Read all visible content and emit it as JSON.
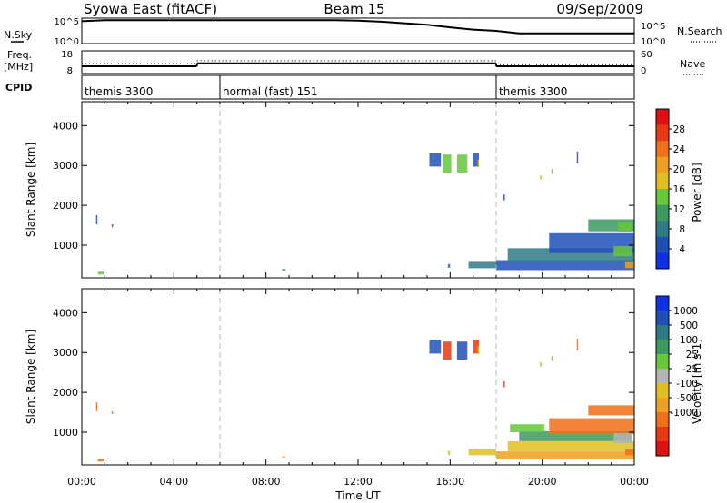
{
  "header": {
    "title": "Syowa East (fitACF)",
    "beam": "Beam 15",
    "date": "09/Sep/2009"
  },
  "chart_data": [
    {
      "type": "line",
      "panel": "nsky",
      "left_label": "N.Sky",
      "right_label": "N.Search",
      "left_ticks": [
        "10^5",
        "10^0"
      ],
      "right_ticks": [
        "10^5",
        "10^0"
      ],
      "x_hours": [
        0,
        1,
        2,
        3,
        4,
        5,
        6,
        7,
        8,
        9,
        10,
        11,
        12,
        13,
        14,
        15,
        16,
        17,
        18,
        19,
        20,
        21,
        22,
        23,
        24
      ],
      "nsky_fraction": [
        0.88,
        0.92,
        0.92,
        0.92,
        0.92,
        0.92,
        0.92,
        0.92,
        0.92,
        0.92,
        0.92,
        0.92,
        0.9,
        0.86,
        0.8,
        0.74,
        0.64,
        0.55,
        0.5,
        0.4,
        0.4,
        0.4,
        0.4,
        0.4,
        0.4
      ]
    },
    {
      "type": "line",
      "panel": "frequency",
      "left_label": "Freq.",
      "left_unit": "[MHz]",
      "right_label": "Nave",
      "left_ticks": [
        "18",
        "8"
      ],
      "right_ticks": [
        "60",
        "0"
      ],
      "ylim": [
        8,
        18
      ],
      "freq_segments": [
        {
          "x_start": 0,
          "x_end": 5,
          "freq": 11.2
        },
        {
          "x_start": 5,
          "x_end": 18,
          "freq": 12.5
        },
        {
          "x_start": 18,
          "x_end": 24,
          "freq": 11.2
        }
      ],
      "nave_segments": [
        {
          "x_start": 0,
          "x_end": 5,
          "nave": 26
        },
        {
          "x_start": 5,
          "x_end": 18,
          "nave": 34
        },
        {
          "x_start": 18,
          "x_end": 24,
          "nave": 24
        }
      ]
    },
    {
      "type": "table",
      "panel": "cpid",
      "label": "CPID",
      "segments": [
        {
          "x_start": 0,
          "x_end": 6,
          "name": "themis 3300"
        },
        {
          "x_start": 6,
          "x_end": 18,
          "name": "normal (fast) 151"
        },
        {
          "x_start": 18,
          "x_end": 24,
          "name": "themis 3300"
        }
      ]
    },
    {
      "type": "heatmap",
      "panel": "power",
      "ylabel": "Slant Range [km]",
      "yticks": [
        1000,
        2000,
        3000,
        4000
      ],
      "ylim": [
        180,
        4600
      ],
      "xlim": [
        0,
        24
      ],
      "colorbar_label": "Power [dB]",
      "colorbar_ticks": [
        "4",
        "8",
        "12",
        "16",
        "20",
        "24",
        "28"
      ],
      "colors": [
        "#1030e8",
        "#1e50b8",
        "#2e7a86",
        "#3c9a60",
        "#66c83a",
        "#e0c020",
        "#f0a020",
        "#f07018",
        "#e83a10",
        "#e01010"
      ],
      "patches": [
        {
          "x": 0.62,
          "r": 1640,
          "w": 0.06,
          "h": 230,
          "c": 1
        },
        {
          "x": 0.7,
          "r": 300,
          "w": 0.25,
          "h": 70,
          "c": 4
        },
        {
          "x": 1.3,
          "r": 1490,
          "w": 0.05,
          "h": 70,
          "c": 1
        },
        {
          "x": 8.7,
          "r": 380,
          "w": 0.15,
          "h": 40,
          "c": 2
        },
        {
          "x": 15.1,
          "r": 3150,
          "w": 0.5,
          "h": 350,
          "c": 1
        },
        {
          "x": 15.7,
          "r": 3050,
          "w": 0.35,
          "h": 450,
          "c": 4
        },
        {
          "x": 16.3,
          "r": 3050,
          "w": 0.45,
          "h": 450,
          "c": 4
        },
        {
          "x": 17.0,
          "r": 3150,
          "w": 0.25,
          "h": 350,
          "c": 1
        },
        {
          "x": 15.9,
          "r": 480,
          "w": 0.1,
          "h": 100,
          "c": 2
        },
        {
          "x": 16.8,
          "r": 500,
          "w": 1.2,
          "h": 160,
          "c": 2
        },
        {
          "x": 18.0,
          "r": 500,
          "w": 6.0,
          "h": 250,
          "c": 1
        },
        {
          "x": 18.5,
          "r": 750,
          "w": 5.5,
          "h": 350,
          "c": 2
        },
        {
          "x": 20.3,
          "r": 1050,
          "w": 3.7,
          "h": 500,
          "c": 1
        },
        {
          "x": 22.0,
          "r": 1500,
          "w": 2.0,
          "h": 300,
          "c": 3
        },
        {
          "x": 23.3,
          "r": 1450,
          "w": 0.6,
          "h": 250,
          "c": 4
        },
        {
          "x": 23.1,
          "r": 850,
          "w": 0.8,
          "h": 250,
          "c": 4
        },
        {
          "x": 23.6,
          "r": 500,
          "w": 0.4,
          "h": 150,
          "c": 6
        },
        {
          "x": 19.9,
          "r": 2700,
          "w": 0.08,
          "h": 100,
          "c": 5
        },
        {
          "x": 20.4,
          "r": 2850,
          "w": 0.06,
          "h": 120,
          "c": 4
        },
        {
          "x": 18.3,
          "r": 2200,
          "w": 0.08,
          "h": 150,
          "c": 1
        },
        {
          "x": 21.5,
          "r": 3200,
          "w": 0.06,
          "h": 300,
          "c": 1
        },
        {
          "x": 17.2,
          "r": 3050,
          "w": 0.05,
          "h": 200,
          "c": 5
        }
      ]
    },
    {
      "type": "heatmap",
      "panel": "velocity",
      "ylabel": "Slant Range [km]",
      "yticks": [
        1000,
        2000,
        3000,
        4000
      ],
      "ylim": [
        180,
        4600
      ],
      "xlim": [
        0,
        24
      ],
      "xticks": [
        "00:00",
        "04:00",
        "08:00",
        "12:00",
        "16:00",
        "20:00",
        "00:00"
      ],
      "xlabel": "Time UT",
      "colorbar_label": "Velocity [m s-1]",
      "colorbar_ticks": [
        "1000",
        "500",
        "100",
        "25",
        "-25",
        "-100",
        "-500",
        "-1000"
      ],
      "colors": [
        "#1030e8",
        "#1e50b8",
        "#2e7a86",
        "#3c9a60",
        "#66c83a",
        "#b4b4b4",
        "#e0c020",
        "#f0a020",
        "#f07018",
        "#e83a10",
        "#e01010"
      ],
      "patches": [
        {
          "x": 0.62,
          "r": 1640,
          "w": 0.06,
          "h": 230,
          "c": 8
        },
        {
          "x": 0.7,
          "r": 300,
          "w": 0.25,
          "h": 70,
          "c": 8
        },
        {
          "x": 1.3,
          "r": 1490,
          "w": 0.05,
          "h": 70,
          "c": 8
        },
        {
          "x": 8.7,
          "r": 380,
          "w": 0.15,
          "h": 40,
          "c": 6
        },
        {
          "x": 15.1,
          "r": 3150,
          "w": 0.5,
          "h": 350,
          "c": 1
        },
        {
          "x": 15.7,
          "r": 3050,
          "w": 0.35,
          "h": 450,
          "c": 9
        },
        {
          "x": 16.3,
          "r": 3050,
          "w": 0.45,
          "h": 450,
          "c": 1
        },
        {
          "x": 17.0,
          "r": 3150,
          "w": 0.25,
          "h": 350,
          "c": 9
        },
        {
          "x": 15.9,
          "r": 480,
          "w": 0.1,
          "h": 100,
          "c": 6
        },
        {
          "x": 16.8,
          "r": 500,
          "w": 1.2,
          "h": 160,
          "c": 6
        },
        {
          "x": 18.0,
          "r": 420,
          "w": 6.0,
          "h": 200,
          "c": 7
        },
        {
          "x": 18.5,
          "r": 650,
          "w": 5.5,
          "h": 250,
          "c": 6
        },
        {
          "x": 19.0,
          "r": 900,
          "w": 4.9,
          "h": 250,
          "c": 3
        },
        {
          "x": 20.3,
          "r": 1150,
          "w": 3.7,
          "h": 400,
          "c": 8
        },
        {
          "x": 22.0,
          "r": 1550,
          "w": 2.0,
          "h": 250,
          "c": 8
        },
        {
          "x": 18.6,
          "r": 1100,
          "w": 1.5,
          "h": 200,
          "c": 4
        },
        {
          "x": 23.1,
          "r": 850,
          "w": 0.8,
          "h": 250,
          "c": 5
        },
        {
          "x": 23.6,
          "r": 500,
          "w": 0.4,
          "h": 150,
          "c": 8
        },
        {
          "x": 19.9,
          "r": 2700,
          "w": 0.08,
          "h": 100,
          "c": 6
        },
        {
          "x": 20.4,
          "r": 2850,
          "w": 0.06,
          "h": 120,
          "c": 4
        },
        {
          "x": 18.3,
          "r": 2200,
          "w": 0.08,
          "h": 150,
          "c": 9
        },
        {
          "x": 21.5,
          "r": 3200,
          "w": 0.06,
          "h": 300,
          "c": 8
        },
        {
          "x": 17.2,
          "r": 3050,
          "w": 0.05,
          "h": 200,
          "c": 6
        }
      ]
    }
  ]
}
